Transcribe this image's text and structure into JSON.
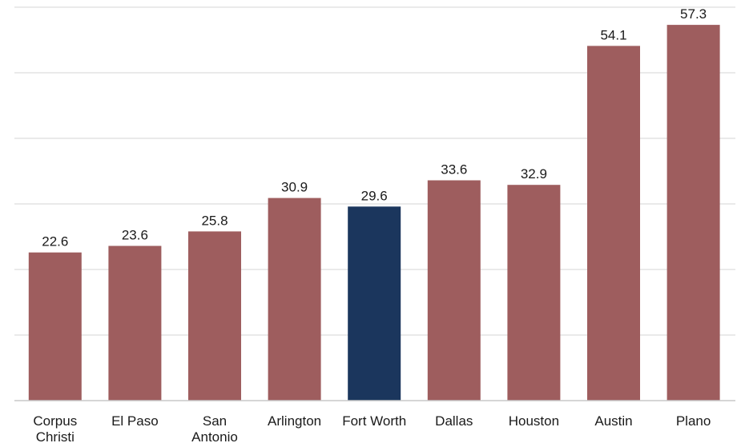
{
  "chart_data": {
    "type": "bar",
    "title": "",
    "xlabel": "",
    "ylabel": "",
    "ylim": [
      0,
      60
    ],
    "grid": true,
    "legend": "none",
    "categories": [
      "Corpus Christi",
      "El Paso",
      "San Antonio",
      "Arlington",
      "Fort Worth",
      "Dallas",
      "Houston",
      "Austin",
      "Plano"
    ],
    "category_lines": [
      [
        "Corpus",
        "Christi"
      ],
      [
        "El Paso"
      ],
      [
        "San",
        "Antonio"
      ],
      [
        "Arlington"
      ],
      [
        "Fort Worth"
      ],
      [
        "Dallas"
      ],
      [
        "Houston"
      ],
      [
        "Austin"
      ],
      [
        "Plano"
      ]
    ],
    "values": [
      22.6,
      23.6,
      25.8,
      30.9,
      29.6,
      33.6,
      32.9,
      54.1,
      57.3
    ],
    "value_labels": [
      "22.6",
      "23.6",
      "25.8",
      "30.9",
      "29.6",
      "33.6",
      "32.9",
      "54.1",
      "57.3"
    ],
    "highlight_category": "Fort Worth",
    "colors": {
      "default_bar": "#9e5d5e",
      "highlight_bar": "#1b365d",
      "grid": "#e3e3e3",
      "axis": "#c8c8c8",
      "text": "#1a1a1a"
    }
  }
}
